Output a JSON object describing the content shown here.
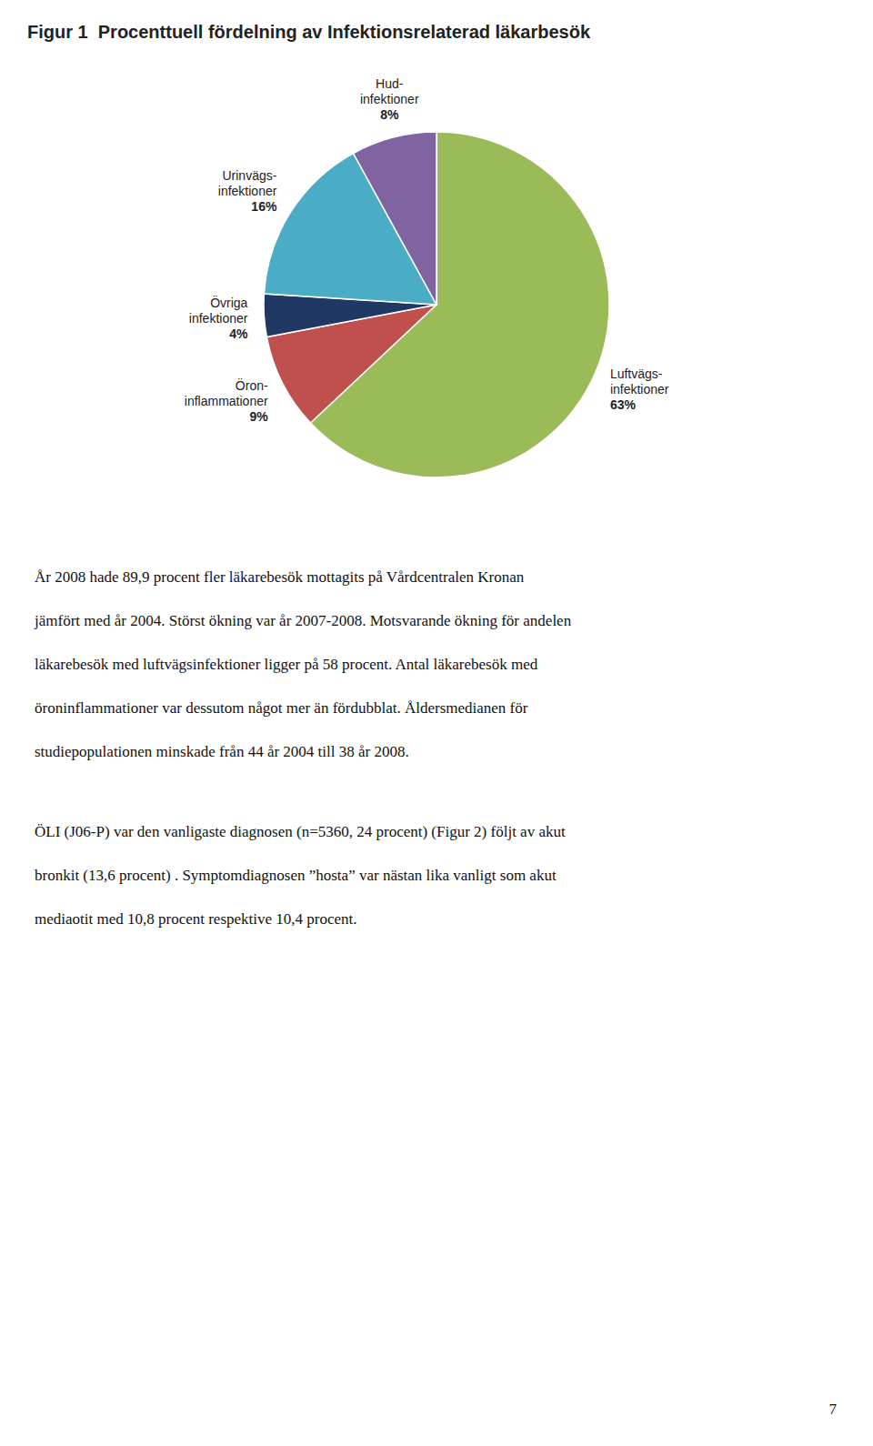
{
  "chart_data": {
    "type": "pie",
    "title": "Figur 1  Procenttuell fördelning av Infektionsrelaterad läkarbesök",
    "categories": [
      "Luftvägs-\ninfektioner",
      "Öron-\ninflammationer",
      "Övriga\ninfektioner",
      "Urinvägs-\ninfektioner",
      "Hud-\ninfektioner"
    ],
    "values": [
      63,
      9,
      4,
      16,
      8
    ],
    "value_labels": [
      "63%",
      "9%",
      "4%",
      "16%",
      "8%"
    ],
    "colors": [
      "#9BBB59",
      "#C0504D",
      "#1F3864",
      "#4BACC6",
      "#8064A2"
    ],
    "data_labels": true,
    "annotations": [
      [
        "År 2008 hade 89,9 procent fler läkarebesök mottagits på Vårdcentralen Kronan",
        "jämfört med år 2004. Störst ökning var år 2007-2008. Motsvarande ökning för andelen",
        "läkarebesök med luftvägsinfektioner ligger på 58 procent. Antal läkarebesök med",
        "öroninflammationer var dessutom något mer än fördubblat. Åldersmedianen för",
        "studiepopulationen minskade från 44 år 2004 till 38 år 2008."
      ],
      [
        "ÖLI (J06-P) var den vanligaste diagnosen (n=5360, 24 procent) (Figur 2) följt av akut",
        "bronkit (13,6 procent) . Symptomdiagnosen ”hosta” var nästan lika vanligt som akut",
        "mediaotit med 10,8 procent respektive 10,4 procent."
      ],
      [
        "7"
      ]
    ]
  }
}
